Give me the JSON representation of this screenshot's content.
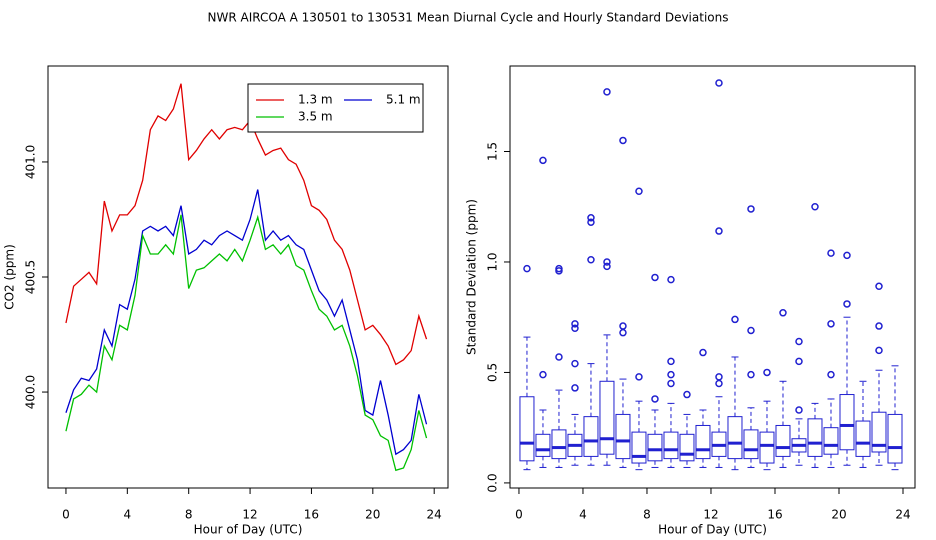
{
  "title": "NWR   AIRCOA A   130501 to 130531   Mean Diurnal Cycle and Hourly Standard Deviations",
  "chart_data": [
    {
      "type": "line",
      "xlabel": "Hour of Day (UTC)",
      "ylabel": "CO2 (ppm)",
      "x": [
        0,
        0.5,
        1,
        1.5,
        2,
        2.5,
        3,
        3.5,
        4,
        4.5,
        5,
        5.5,
        6,
        6.5,
        7,
        7.5,
        8,
        8.5,
        9,
        9.5,
        10,
        10.5,
        11,
        11.5,
        12,
        12.5,
        13,
        13.5,
        14,
        14.5,
        15,
        15.5,
        16,
        16.5,
        17,
        17.5,
        18,
        18.5,
        19,
        19.5,
        20,
        20.5,
        21,
        21.5,
        22,
        22.5,
        23,
        23.5
      ],
      "series": [
        {
          "name": "1.3 m",
          "color": "#e00000",
          "values": [
            400.3,
            400.46,
            400.49,
            400.52,
            400.47,
            400.83,
            400.7,
            400.77,
            400.77,
            400.81,
            400.92,
            401.14,
            401.2,
            401.18,
            401.23,
            401.34,
            401.01,
            401.05,
            401.1,
            401.14,
            401.1,
            401.14,
            401.15,
            401.14,
            401.18,
            401.1,
            401.03,
            401.05,
            401.06,
            401.01,
            400.99,
            400.92,
            400.81,
            400.79,
            400.75,
            400.66,
            400.62,
            400.53,
            400.4,
            400.27,
            400.29,
            400.25,
            400.2,
            400.12,
            400.14,
            400.18,
            400.33,
            400.23
          ]
        },
        {
          "name": "5.1 m",
          "color": "#0000d0",
          "values": [
            399.91,
            400.01,
            400.06,
            400.05,
            400.1,
            400.27,
            400.2,
            400.38,
            400.36,
            400.49,
            400.7,
            400.72,
            400.7,
            400.72,
            400.68,
            400.81,
            400.6,
            400.62,
            400.66,
            400.64,
            400.68,
            400.7,
            400.68,
            400.66,
            400.75,
            400.88,
            400.66,
            400.7,
            400.66,
            400.68,
            400.64,
            400.62,
            400.53,
            400.44,
            400.4,
            400.33,
            400.4,
            400.27,
            400.14,
            399.92,
            399.9,
            400.05,
            399.9,
            399.73,
            399.75,
            399.79,
            399.99,
            399.86
          ]
        },
        {
          "name": "3.5 m",
          "color": "#00c000",
          "values": [
            399.83,
            399.97,
            399.99,
            400.03,
            400.0,
            400.2,
            400.14,
            400.29,
            400.27,
            400.42,
            400.68,
            400.6,
            400.6,
            400.64,
            400.6,
            400.77,
            400.45,
            400.53,
            400.54,
            400.57,
            400.6,
            400.57,
            400.62,
            400.57,
            400.66,
            400.76,
            400.62,
            400.64,
            400.6,
            400.64,
            400.55,
            400.53,
            400.44,
            400.36,
            400.33,
            400.27,
            400.29,
            400.2,
            400.07,
            399.9,
            399.88,
            399.81,
            399.79,
            399.66,
            399.67,
            399.75,
            399.92,
            399.8
          ]
        }
      ],
      "xlim": [
        -1.17,
        24.9
      ],
      "xticks": [
        0,
        4,
        8,
        12,
        16,
        20,
        24
      ],
      "ylim": [
        399.583,
        401.417
      ],
      "yticks": [
        {
          "value": 400,
          "label": "400.0"
        },
        400.5,
        {
          "value": 401,
          "label": "401.0"
        }
      ],
      "legend": "topright"
    },
    {
      "type": "box",
      "color": "#2020d0",
      "xlabel": "Hour of Day (UTC)",
      "ylabel": "Standard Deviation (ppm)",
      "x": [
        0.5,
        1.5,
        2.5,
        3.5,
        4.5,
        5.5,
        6.5,
        7.5,
        8.5,
        9.5,
        10.5,
        11.5,
        12.5,
        13.5,
        14.5,
        15.5,
        16.5,
        17.5,
        18.5,
        19.5,
        20.5,
        21.5,
        22.5,
        23.5
      ],
      "whisker_low": [
        0.06,
        0.07,
        0.07,
        0.08,
        0.08,
        0.08,
        0.07,
        0.06,
        0.07,
        0.07,
        0.07,
        0.07,
        0.07,
        0.06,
        0.07,
        0.06,
        0.07,
        0.08,
        0.07,
        0.07,
        0.08,
        0.07,
        0.08,
        0.06
      ],
      "q1": [
        0.1,
        0.12,
        0.11,
        0.12,
        0.12,
        0.13,
        0.11,
        0.09,
        0.1,
        0.11,
        0.1,
        0.11,
        0.12,
        0.11,
        0.11,
        0.09,
        0.12,
        0.14,
        0.12,
        0.13,
        0.15,
        0.12,
        0.14,
        0.09
      ],
      "median": [
        0.18,
        0.15,
        0.16,
        0.17,
        0.19,
        0.2,
        0.19,
        0.12,
        0.15,
        0.15,
        0.13,
        0.15,
        0.17,
        0.18,
        0.15,
        0.17,
        0.16,
        0.17,
        0.18,
        0.17,
        0.26,
        0.18,
        0.17,
        0.16
      ],
      "q3": [
        0.39,
        0.22,
        0.24,
        0.22,
        0.3,
        0.46,
        0.31,
        0.23,
        0.22,
        0.23,
        0.22,
        0.26,
        0.23,
        0.3,
        0.24,
        0.23,
        0.26,
        0.2,
        0.29,
        0.25,
        0.4,
        0.28,
        0.32,
        0.31
      ],
      "whisker_high": [
        0.66,
        0.33,
        0.42,
        0.31,
        0.54,
        0.67,
        0.47,
        0.37,
        0.33,
        0.36,
        0.31,
        0.33,
        0.39,
        0.57,
        0.34,
        0.37,
        0.46,
        0.29,
        0.36,
        0.38,
        0.75,
        0.46,
        0.51,
        0.53
      ],
      "outliers": [
        [
          0.97
        ],
        [
          0.49,
          1.46
        ],
        [
          0.57,
          0.96,
          0.97
        ],
        [
          0.43,
          0.54,
          0.7,
          0.72
        ],
        [
          1.01,
          1.18,
          1.2
        ],
        [
          0.98,
          1.0,
          1.77
        ],
        [
          0.68,
          0.71,
          1.55
        ],
        [
          0.48,
          1.32
        ],
        [
          0.38,
          0.93
        ],
        [
          0.45,
          0.49,
          0.55,
          0.92
        ],
        [
          0.4
        ],
        [
          0.59
        ],
        [
          0.45,
          0.48,
          1.14,
          1.81
        ],
        [
          0.74
        ],
        [
          0.49,
          0.69,
          1.24
        ],
        [
          0.5
        ],
        [
          0.77
        ],
        [
          0.33,
          0.55,
          0.64
        ],
        [
          1.25
        ],
        [
          0.49,
          0.72,
          1.04
        ],
        [
          0.81,
          1.03
        ],
        [],
        [
          0.6,
          0.71,
          0.89
        ],
        []
      ],
      "xlim": [
        -0.56,
        24.75
      ],
      "xticks": [
        0,
        4,
        8,
        12,
        16,
        20,
        24
      ],
      "ylim": [
        -0.023,
        1.887
      ],
      "yticks": [
        {
          "value": 0,
          "label": "0.0"
        },
        0.5,
        {
          "value": 1,
          "label": "1.0"
        },
        1.5
      ]
    }
  ]
}
